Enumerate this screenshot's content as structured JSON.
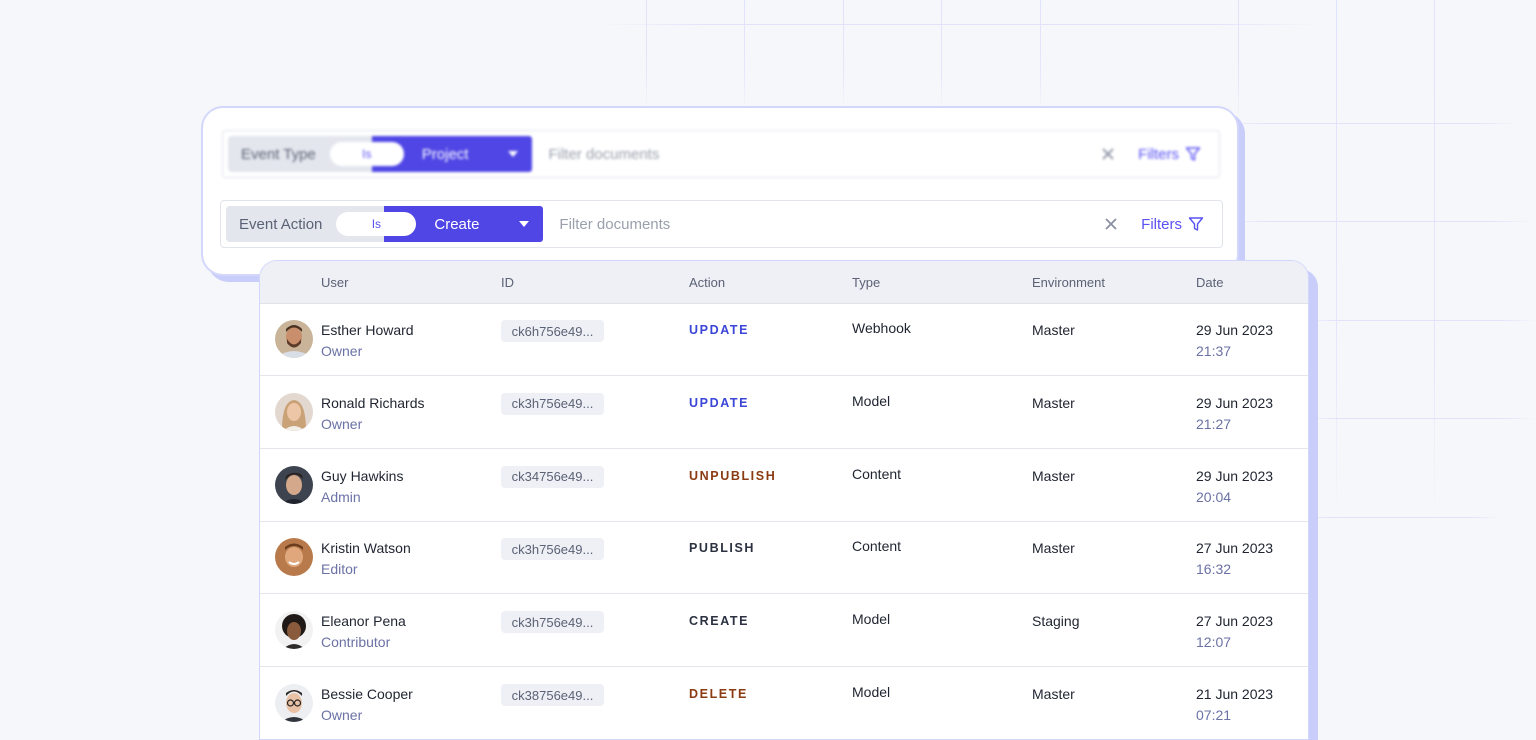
{
  "colors": {
    "accent": "#4f46e5",
    "action_update": "#3b45d6",
    "action_unpublish": "#8a3b12",
    "action_publish": "#2b3140",
    "action_create": "#2b3140",
    "action_delete": "#8a3b12"
  },
  "filter_bars": [
    {
      "field": "Event Type",
      "operator": "Is",
      "value": "Project",
      "placeholder": "Filter documents",
      "filters_label": "Filters"
    },
    {
      "field": "Event Action",
      "operator": "Is",
      "value": "Create",
      "placeholder": "Filter documents",
      "filters_label": "Filters"
    }
  ],
  "table": {
    "columns": [
      "User",
      "ID",
      "Action",
      "Type",
      "Environment",
      "Date"
    ],
    "rows": [
      {
        "name": "Esther Howard",
        "role": "Owner",
        "id": "ck6h756e49...",
        "action": "UPDATE",
        "action_color": "#3b45d6",
        "type": "Webhook",
        "environment": "Master",
        "date": "29 Jun 2023",
        "time": "21:37",
        "avatar": "avatar-man-beard"
      },
      {
        "name": "Ronald Richards",
        "role": "Owner",
        "id": "ck3h756e49...",
        "action": "UPDATE",
        "action_color": "#3b45d6",
        "type": "Model",
        "environment": "Master",
        "date": "29 Jun 2023",
        "time": "21:27",
        "avatar": "avatar-woman-blonde"
      },
      {
        "name": "Guy Hawkins",
        "role": "Admin",
        "id": "ck34756e49...",
        "action": "UNPUBLISH",
        "action_color": "#8a3b12",
        "type": "Content",
        "environment": "Master",
        "date": "29 Jun 2023",
        "time": "20:04",
        "avatar": "avatar-man-dark"
      },
      {
        "name": "Kristin Watson",
        "role": "Editor",
        "id": "ck3h756e49...",
        "action": "PUBLISH",
        "action_color": "#2b3140",
        "type": "Content",
        "environment": "Master",
        "date": "27 Jun 2023",
        "time": "16:32",
        "avatar": "avatar-man-smile"
      },
      {
        "name": "Eleanor Pena",
        "role": "Contributor",
        "id": "ck3h756e49...",
        "action": "CREATE",
        "action_color": "#2b3140",
        "type": "Model",
        "environment": "Staging",
        "date": "27 Jun 2023",
        "time": "12:07",
        "avatar": "avatar-woman-curly"
      },
      {
        "name": "Bessie Cooper",
        "role": "Owner",
        "id": "ck38756e49...",
        "action": "DELETE",
        "action_color": "#8a3b12",
        "type": "Model",
        "environment": "Master",
        "date": "21 Jun 2023",
        "time": "07:21",
        "avatar": "avatar-man-glasses"
      }
    ]
  }
}
